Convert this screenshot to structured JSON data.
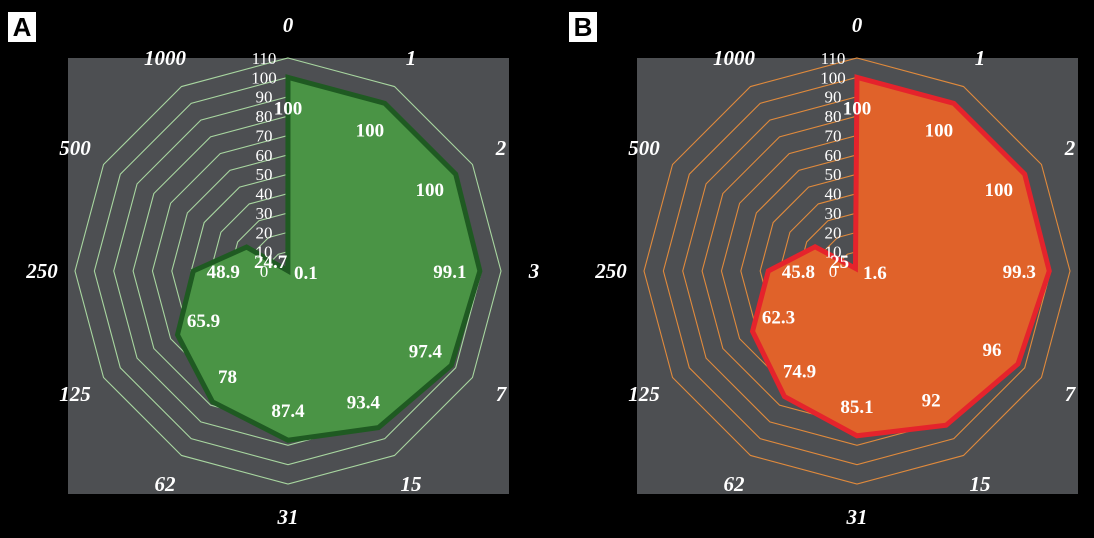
{
  "panels": [
    {
      "label": "A",
      "colors": {
        "fill": "#4a9445",
        "stroke": "#1f5a22",
        "grid": "#a8d6a0"
      }
    },
    {
      "label": "B",
      "colors": {
        "fill": "#e0622a",
        "stroke": "#e5232c",
        "grid": "#e08a3c"
      }
    }
  ],
  "chart_data": [
    {
      "type": "radar",
      "panel": "A",
      "categories": [
        "0",
        "1",
        "2",
        "3",
        "7",
        "15",
        "31",
        "62",
        "125",
        "250",
        "500",
        "1000"
      ],
      "values": [
        100,
        100,
        100,
        99.1,
        97.4,
        93.4,
        87.4,
        78,
        65.9,
        48.9,
        24.7,
        0.1
      ],
      "labels": [
        "100",
        "100",
        "100",
        "99.1",
        "97.4",
        "93.4",
        "87.4",
        "78",
        "65.9",
        "48.9",
        "24.7",
        "0.1"
      ],
      "rlim": [
        0,
        110
      ],
      "ticks": [
        "0",
        "10",
        "20",
        "30",
        "40",
        "50",
        "60",
        "70",
        "80",
        "90",
        "100",
        "110"
      ],
      "plot_background": "#4d4f52"
    },
    {
      "type": "radar",
      "panel": "B",
      "categories": [
        "0",
        "1",
        "2",
        "3",
        "7",
        "15",
        "31",
        "62",
        "125",
        "250",
        "500",
        "1000"
      ],
      "values": [
        100,
        100,
        100,
        99.3,
        96,
        92,
        85.1,
        74.9,
        62.3,
        45.8,
        25,
        1.6
      ],
      "labels": [
        "100",
        "100",
        "100",
        "99.3",
        "96",
        "92",
        "85.1",
        "74.9",
        "62.3",
        "45.8",
        "25",
        "1.6"
      ],
      "rlim": [
        0,
        110
      ],
      "ticks": [
        "0",
        "10",
        "20",
        "30",
        "40",
        "50",
        "60",
        "70",
        "80",
        "90",
        "100",
        "110"
      ],
      "plot_background": "#4d4f52"
    }
  ]
}
